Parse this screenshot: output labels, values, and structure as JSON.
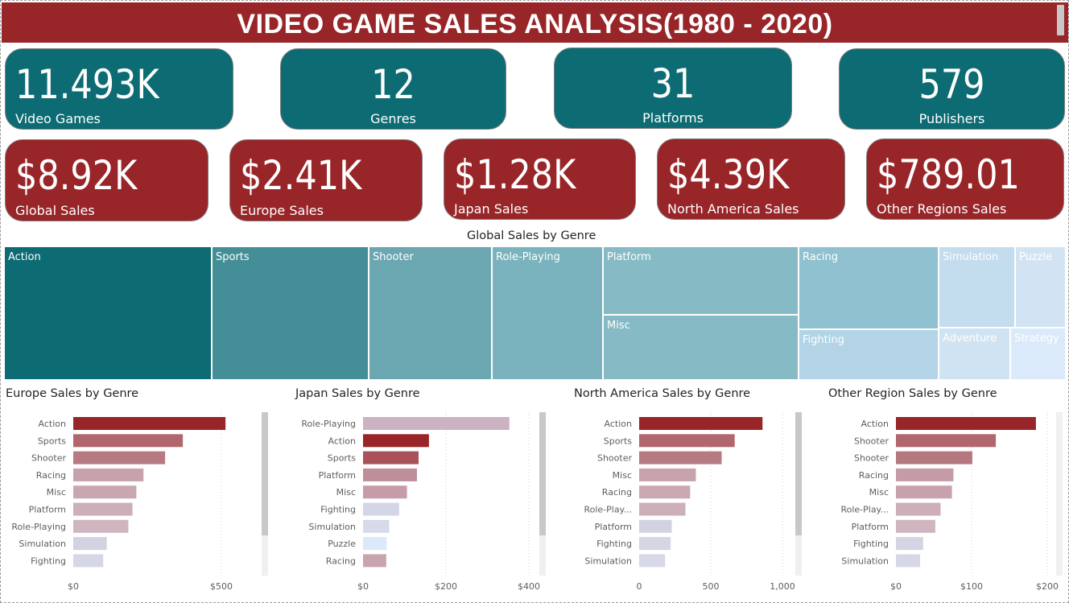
{
  "title": "VIDEO GAME SALES ANALYSIS(1980 - 2020)",
  "kpi_top": [
    {
      "value": "11.493K",
      "label": "Video Games"
    },
    {
      "value": "12",
      "label": "Genres"
    },
    {
      "value": "31",
      "label": "Platforms"
    },
    {
      "value": "579",
      "label": "Publishers"
    }
  ],
  "kpi_sales": [
    {
      "value": "$8.92K",
      "label": "Global Sales"
    },
    {
      "value": "$2.41K",
      "label": "Europe Sales"
    },
    {
      "value": "$1.28K",
      "label": "Japan Sales"
    },
    {
      "value": "$4.39K",
      "label": "North America Sales"
    },
    {
      "value": "$789.01",
      "label": "Other Regions Sales"
    }
  ],
  "colors": {
    "teal": "#0d6b73",
    "red": "#982528",
    "header": "#982528"
  },
  "chart_data": [
    {
      "type": "treemap",
      "title": "Global Sales by Genre",
      "categories": [
        "Action",
        "Sports",
        "Shooter",
        "Role-Playing",
        "Platform",
        "Misc",
        "Racing",
        "Fighting",
        "Simulation",
        "Puzzle",
        "Adventure",
        "Strategy"
      ]
    },
    {
      "type": "bar",
      "orientation": "horizontal",
      "title": "Europe Sales by Genre",
      "categories": [
        "Action",
        "Sports",
        "Shooter",
        "Racing",
        "Misc",
        "Platform",
        "Role-Playing",
        "Simulation",
        "Fighting"
      ],
      "values": [
        514,
        370,
        310,
        237,
        213,
        200,
        186,
        113,
        101
      ],
      "xlim": [
        0,
        500
      ],
      "xticks": [
        "$0",
        "$500"
      ],
      "bar_colors": [
        "#982528",
        "#b0686e",
        "#b87a82",
        "#c7a1ab",
        "#c9a7b1",
        "#ccafb9",
        "#cfb5c0",
        "#d2d2e0",
        "#d5d7e6"
      ]
    },
    {
      "type": "bar",
      "orientation": "horizontal",
      "title": "Japan Sales by Genre",
      "categories": [
        "Role-Playing",
        "Action",
        "Sports",
        "Platform",
        "Misc",
        "Fighting",
        "Simulation",
        "Puzzle",
        "Racing"
      ],
      "values": [
        353,
        159,
        134,
        130,
        106,
        87,
        63,
        57,
        56
      ],
      "xlim": [
        0,
        400
      ],
      "xticks": [
        "$0",
        "$200",
        "$400"
      ],
      "bar_colors": [
        "#cbb3c2",
        "#982528",
        "#a9525a",
        "#be8e99",
        "#c59ca7",
        "#d3d6e6",
        "#d6daea",
        "#dbe9fa",
        "#c9a3ad"
      ]
    },
    {
      "type": "bar",
      "orientation": "horizontal",
      "title": "North America Sales by Genre",
      "categories": [
        "Action",
        "Sports",
        "Shooter",
        "Misc",
        "Racing",
        "Role-Play...",
        "Platform",
        "Fighting",
        "Simulation"
      ],
      "values": [
        861,
        667,
        576,
        396,
        356,
        323,
        228,
        220,
        181
      ],
      "xlim": [
        0,
        1000
      ],
      "xticks": [
        "0",
        "500",
        "1,000"
      ],
      "bar_colors": [
        "#982528",
        "#b0686e",
        "#b87a82",
        "#c8a3ad",
        "#cba9b3",
        "#ccafb9",
        "#d2d3e0",
        "#d4d6e4",
        "#d7d9e8"
      ]
    },
    {
      "type": "bar",
      "orientation": "horizontal",
      "title": "Other Region Sales by Genre",
      "categories": [
        "Action",
        "Shooter",
        "Shooter",
        "Racing",
        "Misc",
        "Role-Play...",
        "Platform",
        "Fighting",
        "Simulation"
      ],
      "values": [
        185,
        132,
        101,
        76,
        74,
        59,
        52,
        36,
        32
      ],
      "xlim": [
        0,
        200
      ],
      "xticks": [
        "$0",
        "$100",
        "$200"
      ],
      "bar_colors": [
        "#982528",
        "#b0686e",
        "#b67880",
        "#c59ca6",
        "#c7a2ac",
        "#ccafb9",
        "#cfb5c0",
        "#d3d5e3",
        "#d6d8e7"
      ]
    }
  ]
}
